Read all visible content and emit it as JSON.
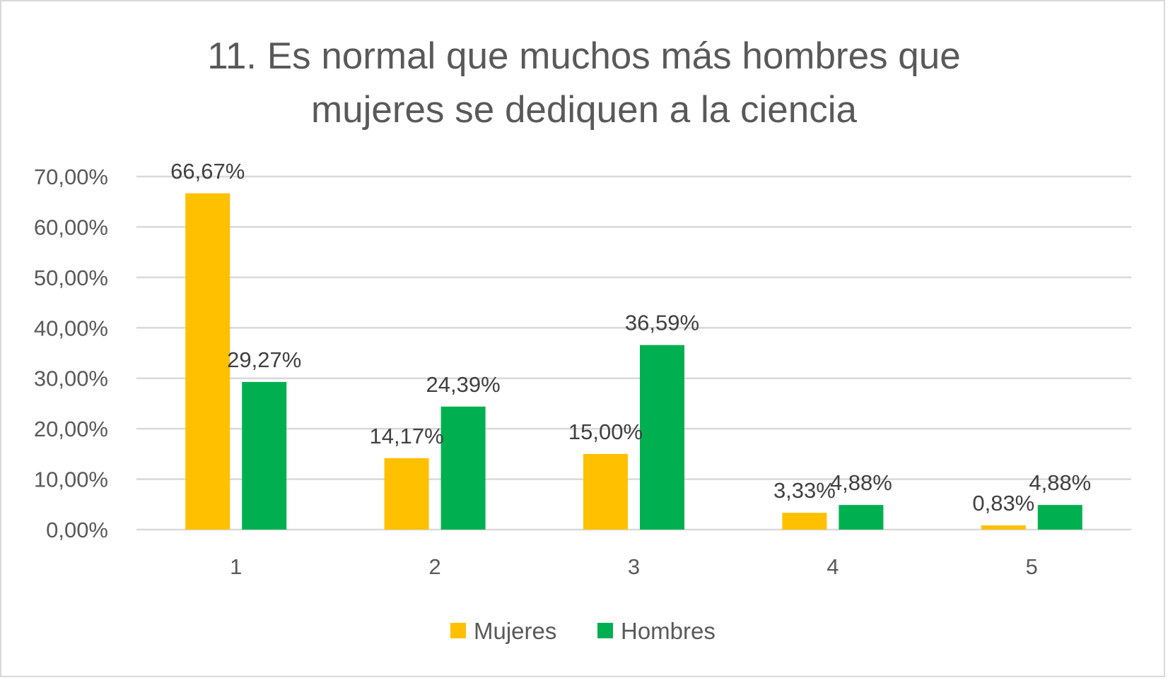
{
  "chart_data": {
    "type": "bar",
    "title_lines": [
      "11. Es normal que muchos más hombres que",
      "mujeres se dediquen a la ciencia"
    ],
    "categories": [
      "1",
      "2",
      "3",
      "4",
      "5"
    ],
    "series": [
      {
        "name": "Mujeres",
        "color": "#FFC000",
        "values": [
          66.67,
          14.17,
          15.0,
          3.33,
          0.83
        ],
        "labels": [
          "66,67%",
          "14,17%",
          "15,00%",
          "3,33%",
          "0,83%"
        ]
      },
      {
        "name": "Hombres",
        "color": "#00B050",
        "values": [
          29.27,
          24.39,
          36.59,
          4.88,
          4.88
        ],
        "labels": [
          "29,27%",
          "24,39%",
          "36,59%",
          "4,88%",
          "4,88%"
        ]
      }
    ],
    "yticks": [
      "0,00%",
      "10,00%",
      "20,00%",
      "30,00%",
      "40,00%",
      "50,00%",
      "60,00%",
      "70,00%"
    ],
    "ylim": [
      0,
      70
    ],
    "xlabel": "",
    "ylabel": "",
    "grid": true,
    "legend_position": "bottom"
  }
}
